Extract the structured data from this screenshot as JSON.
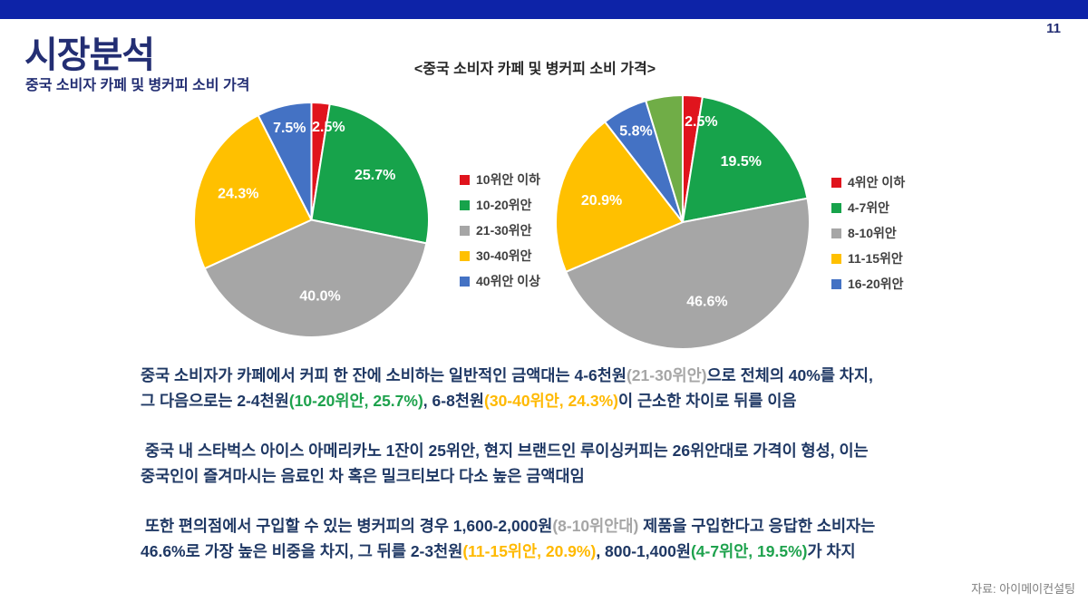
{
  "page_number": "11",
  "header": {
    "title": "시장분석",
    "subtitle": "중국 소비자 카페 및 병커피 소비 가격"
  },
  "chart_title": "<중국 소비자 카페 및 병커피 소비 가격>",
  "source": "자료: 아이메이컨설팅",
  "colors": {
    "accent_bar": "#0d23a8",
    "title_navy": "#232e73",
    "body_navy": "#1f3864",
    "text_gray": "#a6a6a6",
    "text_green": "#1ea24d",
    "text_orange": "#ffb900",
    "legend_text": "#404040",
    "source_gray": "#7f7f7f",
    "pie_red": "#e0141d",
    "pie_green": "#17a34b",
    "pie_gray": "#a6a6a6",
    "pie_yellow": "#ffc000",
    "pie_blue": "#4472c4",
    "pie_lightgreen": "#70ad47"
  },
  "chart_data": [
    {
      "type": "pie",
      "id": "cafe-price-pie",
      "title": "카페 커피 소비 가격 (중국 소비자)",
      "legend_position": "right",
      "start_angle_deg": -90,
      "clockwise": true,
      "slices": [
        {
          "label": "10위안 이하",
          "value": 2.5,
          "pct_label": "2.5%",
          "color": "#e0141d",
          "in_legend": true
        },
        {
          "label": "10-20위안",
          "value": 25.7,
          "pct_label": "25.7%",
          "color": "#17a34b",
          "in_legend": true
        },
        {
          "label": "21-30위안",
          "value": 40.0,
          "pct_label": "40.0%",
          "color": "#a6a6a6",
          "in_legend": true
        },
        {
          "label": "30-40위안",
          "value": 24.3,
          "pct_label": "24.3%",
          "color": "#ffc000",
          "in_legend": true
        },
        {
          "label": "40위안 이상",
          "value": 7.5,
          "pct_label": "7.5%",
          "color": "#4472c4",
          "in_legend": true
        }
      ]
    },
    {
      "type": "pie",
      "id": "bottled-coffee-price-pie",
      "title": "병커피 소비 가격 (중국 소비자)",
      "legend_position": "right",
      "start_angle_deg": -90,
      "clockwise": true,
      "slices": [
        {
          "label": "4위안 이하",
          "value": 2.5,
          "pct_label": "2.5%",
          "color": "#e0141d",
          "in_legend": true
        },
        {
          "label": "4-7위안",
          "value": 19.5,
          "pct_label": "19.5%",
          "color": "#17a34b",
          "in_legend": true
        },
        {
          "label": "8-10위안",
          "value": 46.6,
          "pct_label": "46.6%",
          "color": "#a6a6a6",
          "in_legend": true
        },
        {
          "label": "11-15위안",
          "value": 20.9,
          "pct_label": "20.9%",
          "color": "#ffc000",
          "in_legend": true
        },
        {
          "label": "16-20위안",
          "value": 5.8,
          "pct_label": "5.8%",
          "color": "#4472c4",
          "in_legend": true
        },
        {
          "label": "",
          "value": 4.7,
          "pct_label": "",
          "color": "#70ad47",
          "in_legend": false
        }
      ]
    }
  ],
  "body": {
    "paragraphs": [
      {
        "lines": [
          [
            {
              "t": "중국 소비자가 카페에서 커피 한 잔에 소비하는 일반적인 금액대는 4-6천원",
              "c": "navy"
            },
            {
              "t": "(21-30위안)",
              "c": "gray"
            },
            {
              "t": "으로 전체의 40%를 차지,",
              "c": "navy"
            }
          ],
          [
            {
              "t": "그 다음으로는 2-4천원",
              "c": "navy"
            },
            {
              "t": "(10-20위안, 25.7%)",
              "c": "green"
            },
            {
              "t": ", 6-8천원",
              "c": "navy"
            },
            {
              "t": "(30-40위안, 24.3%)",
              "c": "orange"
            },
            {
              "t": "이 근소한 차이로 뒤를 이음",
              "c": "navy"
            }
          ]
        ]
      },
      {
        "lines": [
          [
            {
              "t": " 중국 내 스타벅스 아이스 아메리카노 1잔이 25위안, 현지 브랜드인 루이싱커피는 26위안대로 가격이 형성, 이는",
              "c": "navy"
            }
          ],
          [
            {
              "t": "중국인이 즐겨마시는 음료인 차 혹은 밀크티보다 다소 높은 금액대임",
              "c": "navy"
            }
          ]
        ]
      },
      {
        "lines": [
          [
            {
              "t": " 또한 편의점에서 구입할 수 있는 병커피의 경우 1,600-2,000원",
              "c": "navy"
            },
            {
              "t": "(8-10위안대)",
              "c": "gray"
            },
            {
              "t": " 제품을 구입한다고 응답한 소비자는",
              "c": "navy"
            }
          ],
          [
            {
              "t": "46.6%로 가장 높은 비중을 차지, 그 뒤를 2-3천원",
              "c": "navy"
            },
            {
              "t": "(11-15위안, 20.9%)",
              "c": "orange"
            },
            {
              "t": ", 800-1,400원",
              "c": "navy"
            },
            {
              "t": "(4-7위안, 19.5%)",
              "c": "green"
            },
            {
              "t": "가 차지",
              "c": "navy"
            }
          ]
        ]
      }
    ]
  }
}
